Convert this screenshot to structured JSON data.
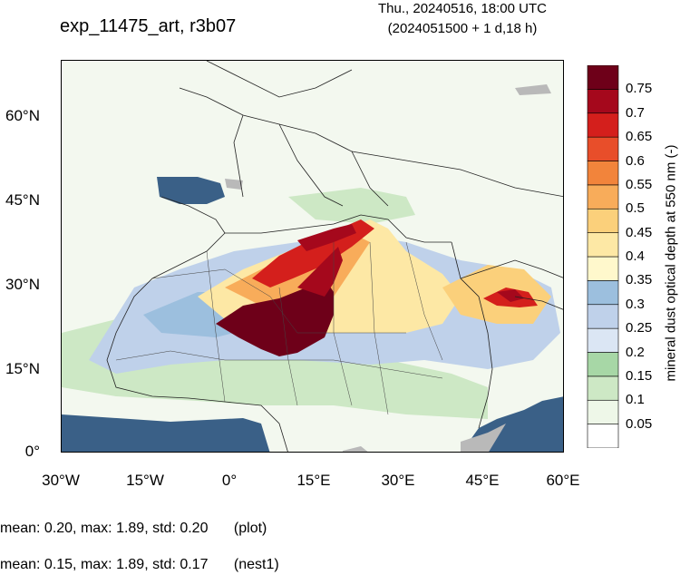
{
  "header": {
    "title": "exp_11475_art, r3b07",
    "valid_time": "Thu., 20240516, 18:00 UTC",
    "init_time": "(2024051500 + 1 d,18 h)"
  },
  "map": {
    "lat_labels": [
      "60°N",
      "45°N",
      "30°N",
      "15°N",
      "0°"
    ],
    "lon_labels": [
      "30°W",
      "15°W",
      "0°",
      "15°E",
      "30°E",
      "45°E",
      "60°E"
    ],
    "ocean_color": "#3a6087",
    "land_background_color": "#f2f8ee",
    "missing_color": "#b9b9b9"
  },
  "colorbar": {
    "title": "mineral dust optical depth at 550 nm (-)",
    "levels": [
      "0.05",
      "0.1",
      "0.15",
      "0.2",
      "0.25",
      "0.3",
      "0.35",
      "0.4",
      "0.45",
      "0.5",
      "0.55",
      "0.6",
      "0.65",
      "0.7",
      "0.75"
    ],
    "colors": [
      "#ffffff",
      "#eef7e8",
      "#cde8c5",
      "#a7d7a6",
      "#dbe6f4",
      "#bfd1ea",
      "#9cbfde",
      "#fff8cc",
      "#fde8a5",
      "#fbd07b",
      "#f8ac5a",
      "#f2843b",
      "#e84e2a",
      "#d41f1c",
      "#a5081c",
      "#6e0019"
    ]
  },
  "stats": {
    "plot": "mean: 0.20, max: 1.89, std: 0.20",
    "plot_tag": "(plot)",
    "nest": "mean: 0.15, max: 1.89, std: 0.17",
    "nest_tag": "(nest1)"
  }
}
